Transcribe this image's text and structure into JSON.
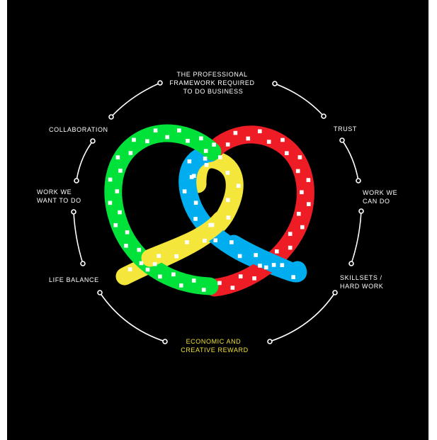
{
  "labels": {
    "top": [
      "THE PROFESSIONAL",
      "FRAMEWORK REQUIRED",
      "TO DO BUSINESS"
    ],
    "trust": [
      "TRUST"
    ],
    "work_we_can_do": [
      "WORK WE",
      "CAN DO"
    ],
    "skillsets": [
      "SKILLSETS /",
      "HARD WORK"
    ],
    "bottom": [
      "ECONOMIC AND",
      "CREATIVE REWARD"
    ],
    "life_balance": [
      "LIFE BALANCE"
    ],
    "work_we_want": [
      "WORK WE",
      "WANT TO DO"
    ],
    "collaboration": [
      "COLLABORATION"
    ]
  },
  "colors": {
    "background": "#000000",
    "ring": "#ffffff",
    "highlight_label": "#f0e135",
    "green": "#00e23a",
    "red": "#ee1c25",
    "yellow": "#f5e63b",
    "blue": "#00aeef",
    "dots": "#ffffff"
  }
}
